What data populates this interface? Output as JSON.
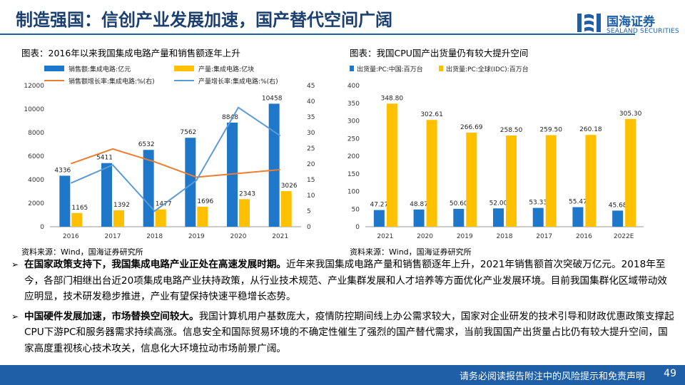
{
  "header": {
    "title": "制造强国：信创产业发展加速，国产替代空间广阔"
  },
  "brand": {
    "name_cn": "国海证券",
    "name_en": "SEALAND SECURITIES",
    "color": "#1f5fa8"
  },
  "left_chart": {
    "caption": "图表：2016年以来我国集成电路产量和销售额逐年上升",
    "source": "资料来源：Wind，国海证券研究所"
  },
  "right_chart": {
    "caption": "图表：我国CPU国产出货量仍有较大提升空间",
    "source": "资料来源：Wind，国海证券研究所"
  },
  "chart_data": [
    {
      "type": "bar+line",
      "categories": [
        "2016",
        "2017",
        "2018",
        "2019",
        "2020",
        "2021"
      ],
      "series": [
        {
          "name": "销售额:集成电路:亿元",
          "kind": "bar",
          "axis": "left",
          "color": "#1f77c9",
          "values": [
            4336,
            5411,
            6532,
            7562,
            8848,
            10458
          ]
        },
        {
          "name": "产量:集成电路:亿块",
          "kind": "bar",
          "axis": "left",
          "color": "#ffc000",
          "values": [
            1165,
            1392,
            1477,
            1696,
            2343,
            3026
          ]
        },
        {
          "name": "销售额增长率:集成电路:%(右)",
          "kind": "line",
          "axis": "right",
          "color": "#ed7d31",
          "values": [
            20.1,
            24.8,
            20.7,
            15.8,
            17.0,
            18.2
          ]
        },
        {
          "name": "产量增长率:集成电路:%(右)",
          "kind": "line",
          "axis": "right",
          "color": "#5b9bd5",
          "values": [
            13.9,
            19.7,
            5.0,
            14.8,
            38.0,
            29.0
          ]
        }
      ],
      "ylim_left": [
        0,
        12000
      ],
      "yticks_left": [
        "0",
        "2000",
        "4000",
        "6000",
        "8000",
        "10000",
        "12000"
      ],
      "ylim_right": [
        0,
        45
      ],
      "yticks_right": [
        "0",
        "5",
        "10",
        "15",
        "20",
        "25",
        "30",
        "35",
        "40",
        "45"
      ]
    },
    {
      "type": "bar",
      "categories": [
        "2021",
        "2020",
        "2019",
        "2018",
        "2017",
        "2016",
        "2022E"
      ],
      "series": [
        {
          "name": "出货量:PC:中国:百万台",
          "color": "#1f77c9",
          "values": [
            47.27,
            48.87,
            50.6,
            52.0,
            53.33,
            55.47,
            45.68
          ],
          "labels": [
            "47.27",
            "48.87",
            "50.60",
            "52.00",
            "53.33",
            "55.47",
            "45.68"
          ]
        },
        {
          "name": "出货量:PC:全球(IDC):百万台",
          "color": "#ffc000",
          "values": [
            348.8,
            302.61,
            266.69,
            258.5,
            259.5,
            260.18,
            305.3
          ],
          "labels": [
            "348.80",
            "302.61",
            "266.69",
            "258.50",
            "259.50",
            "260.18",
            "305.30"
          ]
        }
      ],
      "ylim": [
        0,
        400
      ],
      "yticks": [
        "0",
        "50",
        "100",
        "150",
        "200",
        "250",
        "300",
        "350",
        "400"
      ]
    }
  ],
  "bullets": [
    {
      "bold": "在国家政策支持下，我国集成电路产业正处在高速发展时期。",
      "text": "近年来我国集成电路产量和销售额逐年上升，2021年销售额首次突破万亿元。2018年至今，各部门相继出台近20项集成电路产业扶持政策，从行业技术规范、产业集群发展和人才培养等方面优化产业发展环境。目前我国集群化区域带动效应明显，技术研发稳步推进，产业有望保持快速平稳增长态势。"
    },
    {
      "bold": "中国硬件发展加速，市场替换空间较大。",
      "text": "我国计算机用户基数庞大，疫情防控期间线上办公需求较大，国家对企业研发的技术引导和财政优惠政策支撑起CPU下游PC和服务器需求持续高涨。信息安全和国际贸易环境的不确定性催生了强烈的国产替代需求，当前我国国产出货量占比仍有较大提升空间，国家高度重视核心技术攻关，信息化大环境拉动市场前景广阔。"
    }
  ],
  "footer": {
    "disclaimer": "请务必阅读报告附注中的风险提示和免责声明",
    "page": "49"
  }
}
